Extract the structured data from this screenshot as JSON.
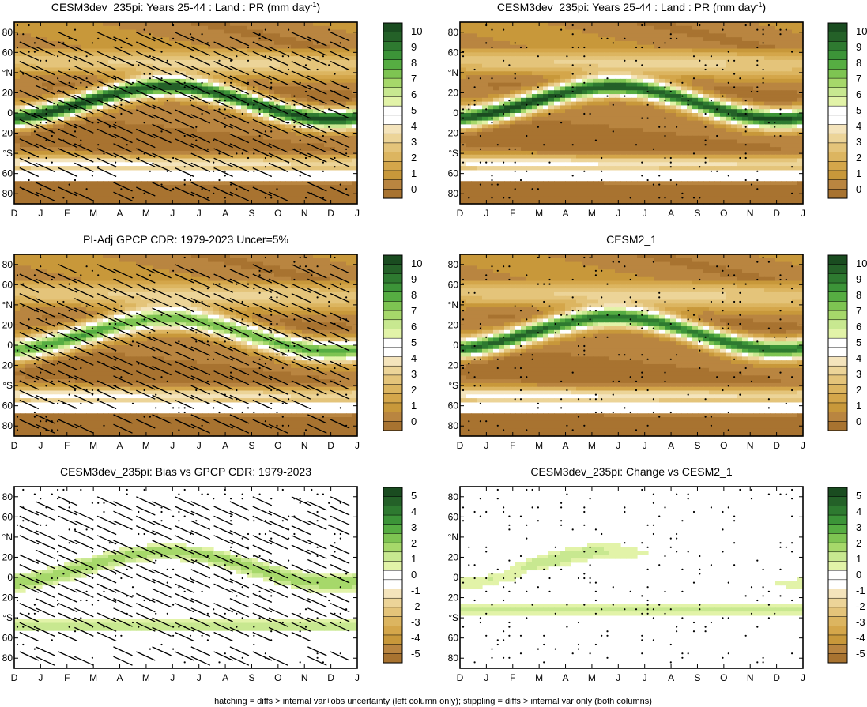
{
  "caption": "hatching = diffs > internal var+obs uncertainty (left column only); stippling = diffs > internal var only (both columns)",
  "palettes": {
    "abs": [
      "#a87330",
      "#b98540",
      "#c8983a",
      "#d4a64a",
      "#dcb560",
      "#e4c47a",
      "#ecd498",
      "#f4e4bc",
      "#ffffff",
      "#ffffff",
      "#e2f3a8",
      "#c8e890",
      "#a6d86a",
      "#7ec452",
      "#56ad42",
      "#3c9438",
      "#2e7a30",
      "#246128",
      "#1a4c20"
    ],
    "diff": [
      "#a87330",
      "#b98540",
      "#c8983a",
      "#d4a64a",
      "#dcb560",
      "#e4c47a",
      "#ecd498",
      "#f4e4bc",
      "#ffffff",
      "#ffffff",
      "#e2f3a8",
      "#c8e890",
      "#a6d86a",
      "#7ec452",
      "#56ad42",
      "#3c9438",
      "#2e7a30",
      "#246128",
      "#1a4c20"
    ]
  },
  "chart_data": [
    {
      "type": "heatmap",
      "title": "CESM3dev_235pi: Years 25-44 : Land : PR (mm day",
      "title_sup": "-1",
      "title_tail": ")",
      "x_ticks": [
        "D",
        "J",
        "F",
        "M",
        "A",
        "M",
        "J",
        "J",
        "A",
        "S",
        "O",
        "N",
        "D",
        "J"
      ],
      "y_ticks": [
        "80",
        "60",
        "°N",
        "20",
        "0",
        "20",
        "°S",
        "60",
        "80"
      ],
      "ylim": [
        -90,
        90
      ],
      "colorbar": {
        "labels": [
          "10",
          "9",
          "8",
          "7",
          "6",
          "5",
          "4",
          "3",
          "2",
          "1",
          "0"
        ],
        "range": [
          0,
          10
        ],
        "palette": "abs"
      },
      "field": "absolute",
      "source": "model3",
      "hatching": true,
      "stippling": true
    },
    {
      "type": "heatmap",
      "title": "CESM3dev_235pi: Years 25-44 : Land : PR (mm day",
      "title_sup": "-1",
      "title_tail": ")",
      "x_ticks": [
        "D",
        "J",
        "F",
        "M",
        "A",
        "M",
        "J",
        "J",
        "A",
        "S",
        "O",
        "N",
        "D",
        "J"
      ],
      "y_ticks": [
        "80",
        "60",
        "°N",
        "20",
        "0",
        "20",
        "°S",
        "60",
        "80"
      ],
      "ylim": [
        -90,
        90
      ],
      "colorbar": {
        "labels": [
          "10",
          "9",
          "8",
          "7",
          "6",
          "5",
          "4",
          "3",
          "2",
          "1",
          "0"
        ],
        "range": [
          0,
          10
        ],
        "palette": "abs"
      },
      "field": "absolute",
      "source": "model3",
      "hatching": false,
      "stippling": true
    },
    {
      "type": "heatmap",
      "title": "PI-Adj GPCP CDR: 1979-2023 Uncer=5%",
      "x_ticks": [
        "D",
        "J",
        "F",
        "M",
        "A",
        "M",
        "J",
        "J",
        "A",
        "S",
        "O",
        "N",
        "D",
        "J"
      ],
      "y_ticks": [
        "80",
        "60",
        "°N",
        "20",
        "0",
        "20",
        "°S",
        "60",
        "80"
      ],
      "ylim": [
        -90,
        90
      ],
      "colorbar": {
        "labels": [
          "10",
          "9",
          "8",
          "7",
          "6",
          "5",
          "4",
          "3",
          "2",
          "1",
          "0"
        ],
        "range": [
          0,
          10
        ],
        "palette": "abs"
      },
      "field": "absolute",
      "source": "obs",
      "hatching": true,
      "stippling": true
    },
    {
      "type": "heatmap",
      "title": "CESM2_1",
      "x_ticks": [
        "D",
        "J",
        "F",
        "M",
        "A",
        "M",
        "J",
        "J",
        "A",
        "S",
        "O",
        "N",
        "D",
        "J"
      ],
      "y_ticks": [
        "80",
        "60",
        "°N",
        "20",
        "0",
        "20",
        "°S",
        "60",
        "80"
      ],
      "ylim": [
        -90,
        90
      ],
      "colorbar": {
        "labels": [
          "10",
          "9",
          "8",
          "7",
          "6",
          "5",
          "4",
          "3",
          "2",
          "1",
          "0"
        ],
        "range": [
          0,
          10
        ],
        "palette": "abs"
      },
      "field": "absolute",
      "source": "model2",
      "hatching": false,
      "stippling": true
    },
    {
      "type": "heatmap",
      "title": "CESM3dev_235pi: Bias vs GPCP CDR: 1979-2023",
      "x_ticks": [
        "D",
        "J",
        "F",
        "M",
        "A",
        "M",
        "J",
        "J",
        "A",
        "S",
        "O",
        "N",
        "D",
        "J"
      ],
      "y_ticks": [
        "80",
        "60",
        "°N",
        "20",
        "0",
        "20",
        "°S",
        "60",
        "80"
      ],
      "ylim": [
        -90,
        90
      ],
      "colorbar": {
        "labels": [
          "5",
          "4",
          "3",
          "2",
          "1",
          "0",
          "-1",
          "-2",
          "-3",
          "-4",
          "-5"
        ],
        "range": [
          -5,
          5
        ],
        "palette": "diff"
      },
      "field": "bias",
      "source": "bias",
      "hatching": true,
      "stippling": true
    },
    {
      "type": "heatmap",
      "title": "CESM3dev_235pi: Change vs CESM2_1",
      "x_ticks": [
        "D",
        "J",
        "F",
        "M",
        "A",
        "M",
        "J",
        "J",
        "A",
        "S",
        "O",
        "N",
        "D",
        "J"
      ],
      "y_ticks": [
        "80",
        "60",
        "°N",
        "20",
        "0",
        "20",
        "°S",
        "60",
        "80"
      ],
      "ylim": [
        -90,
        90
      ],
      "colorbar": {
        "labels": [
          "5",
          "4",
          "3",
          "2",
          "1",
          "0",
          "-1",
          "-2",
          "-3",
          "-4",
          "-5"
        ],
        "range": [
          -5,
          5
        ],
        "palette": "diff"
      },
      "field": "change",
      "source": "change",
      "hatching": false,
      "stippling": true
    }
  ]
}
